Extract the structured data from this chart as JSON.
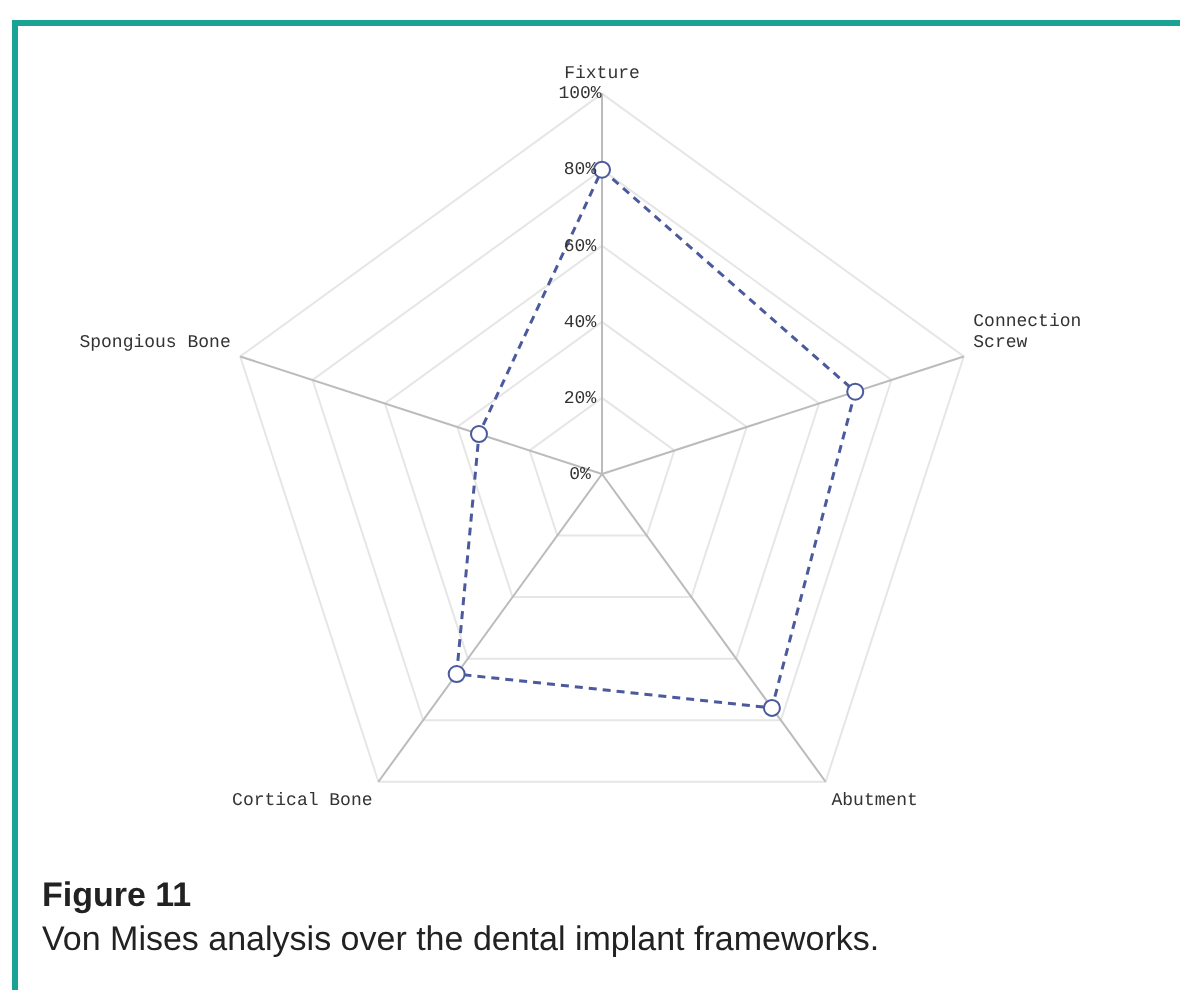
{
  "chart_data": {
    "type": "radar",
    "title": "Figure 11",
    "subtitle": "Von Mises analysis over the dental implant frameworks.",
    "categories": [
      "Fixture",
      "Connection\nScrew",
      "Abutment",
      "Cortical Bone",
      "Spongious Bone"
    ],
    "series": [
      {
        "color": "#4a5a9c",
        "values": [
          80,
          70,
          76,
          65,
          34
        ]
      }
    ],
    "ylim": [
      0,
      100
    ],
    "yticks": [
      {
        "value": 0,
        "label": "0%"
      },
      {
        "value": 20,
        "label": "20%"
      },
      {
        "value": 40,
        "label": "40%"
      },
      {
        "value": 60,
        "label": "60%"
      },
      {
        "value": 80,
        "label": "80%"
      },
      {
        "value": 100,
        "label": "100%"
      }
    ],
    "grid": true,
    "legend": false,
    "marker": "circle",
    "line_style": "dashed"
  }
}
